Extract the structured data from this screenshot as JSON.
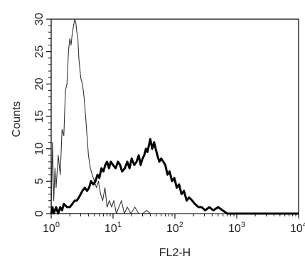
{
  "chart_data": {
    "type": "line",
    "title": "",
    "xlabel": "FL2-H",
    "ylabel": "Counts",
    "x_scale": "log",
    "xlim": [
      1,
      10000
    ],
    "ylim": [
      0,
      30
    ],
    "grid": false,
    "legend": "none",
    "x_ticks": [
      {
        "value": 1,
        "base": "10",
        "exp": "0"
      },
      {
        "value": 10,
        "base": "10",
        "exp": "1"
      },
      {
        "value": 100,
        "base": "10",
        "exp": "2"
      },
      {
        "value": 1000,
        "base": "10",
        "exp": "3"
      },
      {
        "value": 10000,
        "base": "10",
        "exp": "4"
      }
    ],
    "y_ticks": [
      0,
      5,
      10,
      15,
      20,
      25,
      30
    ],
    "series": [
      {
        "color": "#333333",
        "stroke": "thin",
        "x": [
          1.0,
          1.05,
          1.1,
          1.15,
          1.2,
          1.3,
          1.4,
          1.5,
          1.6,
          1.7,
          1.8,
          1.9,
          2.0,
          2.1,
          2.2,
          2.3,
          2.4,
          2.5,
          2.6,
          2.7,
          2.8,
          3.0,
          3.2,
          3.4,
          3.6,
          3.8,
          4.0,
          4.3,
          4.6,
          5.0,
          5.4,
          5.8,
          6.3,
          6.8,
          7.4,
          8.0,
          8.7,
          9.5,
          10.3,
          11.3,
          12.4,
          13.7,
          15.2,
          17.0,
          19.5,
          22.5,
          26.0,
          30.0,
          35.0,
          40.0,
          46.0,
          55.0,
          70.0,
          100.0,
          300.0,
          1000.0,
          3000.0,
          10000.0
        ],
        "y": [
          0,
          11,
          2,
          7,
          4,
          9,
          6,
          13,
          12,
          19,
          20,
          25,
          27,
          26,
          28,
          29,
          30,
          29.5,
          28,
          27,
          24,
          21,
          20,
          18,
          15,
          12,
          9,
          7,
          6,
          5,
          4,
          5,
          3,
          2,
          4,
          1,
          2,
          1,
          2,
          0,
          1,
          2,
          0,
          1,
          0,
          1,
          0,
          0,
          0.5,
          0,
          0,
          0,
          0,
          0,
          0,
          0,
          0,
          0
        ]
      },
      {
        "color": "#000000",
        "stroke": "thick",
        "x": [
          1.0,
          1.05,
          1.1,
          1.2,
          1.3,
          1.4,
          1.5,
          1.6,
          1.8,
          2.0,
          2.2,
          2.4,
          2.6,
          2.8,
          3.0,
          3.2,
          3.5,
          3.8,
          4.1,
          4.4,
          4.8,
          5.2,
          5.6,
          6.0,
          6.5,
          7.0,
          7.5,
          8.0,
          8.6,
          9.2,
          10.0,
          11.0,
          12.0,
          13.0,
          14.0,
          15.5,
          17.0,
          18.5,
          20.0,
          22.0,
          24.0,
          26.0,
          28.0,
          30.0,
          32.0,
          34.0,
          36.0,
          38.0,
          40.0,
          43.0,
          46.0,
          49.0,
          52.0,
          56.0,
          60.0,
          65.0,
          70.0,
          76.0,
          82.0,
          90.0,
          98.0,
          107.0,
          117.0,
          128.0,
          140.0,
          155.0,
          170.0,
          190.0,
          210.0,
          240.0,
          270.0,
          310.0,
          360.0,
          420.0,
          500.0,
          700.0,
          1000.0,
          2000.0,
          5000.0,
          10000.0
        ],
        "y": [
          0,
          1,
          0,
          1,
          0,
          1,
          0.5,
          1.5,
          1,
          1,
          1.5,
          2,
          2,
          2.5,
          3,
          3.5,
          4,
          3.5,
          4,
          5,
          4.5,
          5,
          6,
          5.5,
          7,
          6.5,
          7.5,
          8,
          7,
          8,
          7.5,
          7,
          8,
          7.5,
          6.5,
          7,
          8,
          7,
          8.5,
          7.5,
          8,
          9,
          7.5,
          8.5,
          9,
          10,
          9.5,
          10.5,
          11.5,
          10,
          11,
          10,
          9,
          8,
          8.5,
          8,
          7.5,
          6,
          6.5,
          5,
          5.5,
          4,
          4.5,
          3,
          3.5,
          2,
          2.5,
          2,
          1.5,
          1,
          1,
          0.5,
          1,
          0.5,
          1,
          0,
          0,
          0,
          0,
          0
        ]
      }
    ]
  }
}
